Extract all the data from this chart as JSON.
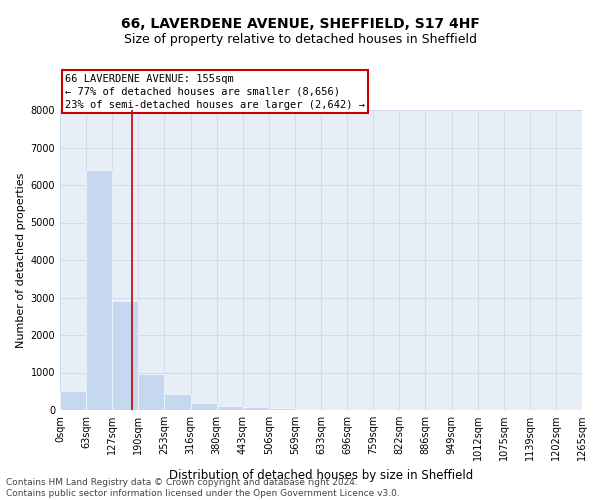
{
  "title": "66, LAVERDENE AVENUE, SHEFFIELD, S17 4HF",
  "subtitle": "Size of property relative to detached houses in Sheffield",
  "xlabel": "Distribution of detached houses by size in Sheffield",
  "ylabel": "Number of detached properties",
  "bar_values": [
    500,
    6400,
    2900,
    950,
    420,
    180,
    100,
    70,
    50,
    0,
    0,
    0,
    0,
    0,
    0,
    0,
    0,
    0,
    0,
    0
  ],
  "bar_labels": [
    "0sqm",
    "63sqm",
    "127sqm",
    "190sqm",
    "253sqm",
    "316sqm",
    "380sqm",
    "443sqm",
    "506sqm",
    "569sqm",
    "633sqm",
    "696sqm",
    "759sqm",
    "822sqm",
    "886sqm",
    "949sqm",
    "1012sqm",
    "1075sqm",
    "1139sqm",
    "1202sqm",
    "1265sqm"
  ],
  "bar_color": "#c5d8f0",
  "bar_edgecolor": "#c5d8f0",
  "redline_x": 2.26,
  "redline_color": "#cc0000",
  "annotation_line1": "66 LAVERDENE AVENUE: 155sqm",
  "annotation_line2": "← 77% of detached houses are smaller (8,656)",
  "annotation_line3": "23% of semi-detached houses are larger (2,642) →",
  "ylim": [
    0,
    8000
  ],
  "yticks": [
    0,
    1000,
    2000,
    3000,
    4000,
    5000,
    6000,
    7000,
    8000
  ],
  "grid_color": "#ced8ea",
  "bg_color": "#e8eef6",
  "footer_line1": "Contains HM Land Registry data © Crown copyright and database right 2024.",
  "footer_line2": "Contains public sector information licensed under the Open Government Licence v3.0.",
  "title_fontsize": 10,
  "subtitle_fontsize": 9,
  "xlabel_fontsize": 8.5,
  "ylabel_fontsize": 8,
  "tick_fontsize": 7,
  "annotation_fontsize": 7.5,
  "footer_fontsize": 6.5
}
